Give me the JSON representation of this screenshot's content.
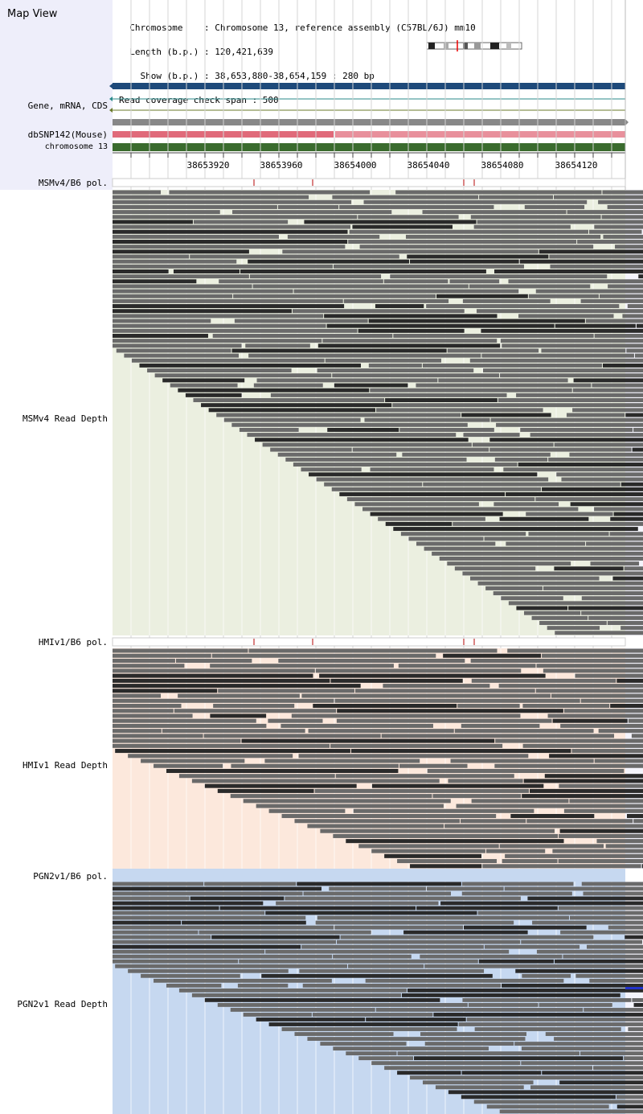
{
  "header": {
    "title": "Map View",
    "info_lines": [
      "  Chromosome    : Chromosome 13, reference assembly (C57BL/6J) mm10",
      "  Length (b.p.) : 120,421,639",
      "    Show (b.p.) : 38,653,880-38,654,159 : 280 bp",
      "Read coverage check span : 500"
    ]
  },
  "tracks": {
    "gene_label": "Gene, mRNA, CDS",
    "snp_label": "dbSNP142(Mouse)",
    "chrom_label": "chromosome 13"
  },
  "ruler": {
    "ticks": [
      "38653920",
      "38653960",
      "38654000",
      "38654040",
      "38654080",
      "38654120"
    ]
  },
  "samples": [
    {
      "pol_label": "MSMv4/B6 pol.",
      "depth_label": "MSMv4 Read Depth",
      "bg": "#ebefe0"
    },
    {
      "pol_label": "HMIv1/B6 pol.",
      "depth_label": "HMIv1 Read Depth",
      "bg": "#fce8dc"
    },
    {
      "pol_label": "PGN2v1/B6 pol.",
      "depth_label": "PGN2v1 Read Depth",
      "bg": "#c6d8f0"
    }
  ],
  "colors": {
    "gene_bar": "#1e4a7a",
    "snp_bar": "#e06a7a",
    "chrom_bar": "#3a6b2e",
    "read_dark": "#2a2a2a",
    "read_gray": "#6a6a6a",
    "pol_mark": "#c03030"
  }
}
